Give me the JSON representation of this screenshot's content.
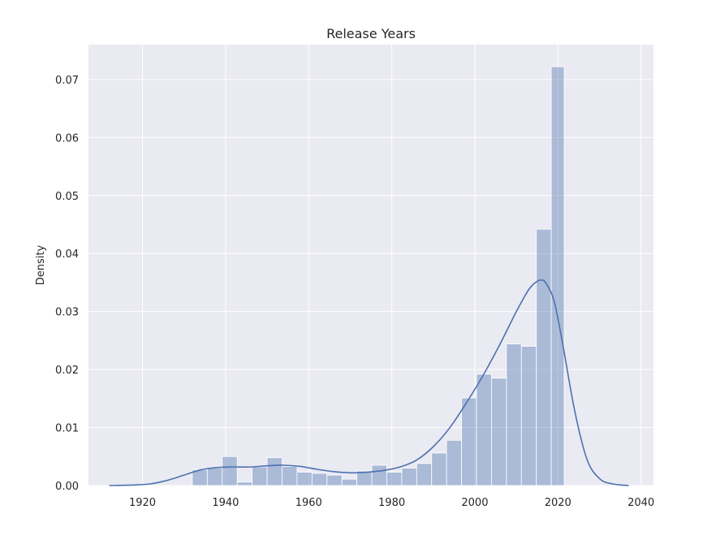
{
  "chart_data": {
    "type": "histogram",
    "title": "Release Years",
    "xlabel": "",
    "ylabel": "Density",
    "xlim": [
      1907,
      2043
    ],
    "ylim": [
      0,
      0.076
    ],
    "xticks": [
      1920,
      1940,
      1960,
      1980,
      2000,
      2020,
      2040
    ],
    "yticks": [
      0.0,
      0.01,
      0.02,
      0.03,
      0.04,
      0.05,
      0.06,
      0.07
    ],
    "ytick_labels": [
      "0.00",
      "0.01",
      "0.02",
      "0.03",
      "0.04",
      "0.05",
      "0.06",
      "0.07"
    ],
    "grid": true,
    "bar_color": "#4c72b0",
    "bar_alpha": 0.4,
    "kde_color": "#4c72b0",
    "bg_color": "#eaeaf2",
    "bins": [
      {
        "x0": 1932.0,
        "x1": 1935.6,
        "value": 0.0027
      },
      {
        "x0": 1935.6,
        "x1": 1939.2,
        "value": 0.003
      },
      {
        "x0": 1939.2,
        "x1": 1942.8,
        "value": 0.005
      },
      {
        "x0": 1942.8,
        "x1": 1946.4,
        "value": 0.0006
      },
      {
        "x0": 1946.4,
        "x1": 1950.0,
        "value": 0.0032
      },
      {
        "x0": 1950.0,
        "x1": 1953.6,
        "value": 0.0048
      },
      {
        "x0": 1953.6,
        "x1": 1957.2,
        "value": 0.0033
      },
      {
        "x0": 1957.2,
        "x1": 1960.8,
        "value": 0.0023
      },
      {
        "x0": 1960.8,
        "x1": 1964.4,
        "value": 0.0021
      },
      {
        "x0": 1964.4,
        "x1": 1968.0,
        "value": 0.0018
      },
      {
        "x0": 1968.0,
        "x1": 1971.6,
        "value": 0.0011
      },
      {
        "x0": 1971.6,
        "x1": 1975.2,
        "value": 0.0025
      },
      {
        "x0": 1975.2,
        "x1": 1978.8,
        "value": 0.0035
      },
      {
        "x0": 1978.8,
        "x1": 1982.4,
        "value": 0.0023
      },
      {
        "x0": 1982.4,
        "x1": 1986.0,
        "value": 0.003
      },
      {
        "x0": 1986.0,
        "x1": 1989.6,
        "value": 0.0038
      },
      {
        "x0": 1989.6,
        "x1": 1993.2,
        "value": 0.0056
      },
      {
        "x0": 1993.2,
        "x1": 1996.8,
        "value": 0.0078
      },
      {
        "x0": 1996.8,
        "x1": 2000.4,
        "value": 0.0151
      },
      {
        "x0": 2000.4,
        "x1": 2004.0,
        "value": 0.0192
      },
      {
        "x0": 2004.0,
        "x1": 2007.6,
        "value": 0.0185
      },
      {
        "x0": 2007.6,
        "x1": 2011.2,
        "value": 0.0244
      },
      {
        "x0": 2011.2,
        "x1": 2014.8,
        "value": 0.024
      },
      {
        "x0": 2014.8,
        "x1": 2018.4,
        "value": 0.0442
      },
      {
        "x0": 2018.4,
        "x1": 2021.5,
        "value": 0.0722
      }
    ],
    "kde": {
      "x": [
        1912,
        1918,
        1922,
        1926,
        1930,
        1934,
        1938,
        1942,
        1946,
        1950,
        1954,
        1958,
        1962,
        1966,
        1970,
        1974,
        1978,
        1982,
        1986,
        1990,
        1994,
        1998,
        2002,
        2006,
        2010,
        2013,
        2015,
        2016,
        2017,
        2019,
        2021,
        2024,
        2027,
        2030,
        2033,
        2037
      ],
      "y": [
        0.0,
        0.0001,
        0.0003,
        0.0009,
        0.0018,
        0.0027,
        0.0031,
        0.0032,
        0.0032,
        0.0034,
        0.0035,
        0.0033,
        0.0028,
        0.0024,
        0.0022,
        0.0023,
        0.0026,
        0.0032,
        0.0044,
        0.0067,
        0.01,
        0.0143,
        0.019,
        0.0243,
        0.03,
        0.0338,
        0.0352,
        0.0354,
        0.035,
        0.032,
        0.025,
        0.013,
        0.0045,
        0.0012,
        0.0003,
        0.0
      ]
    }
  }
}
